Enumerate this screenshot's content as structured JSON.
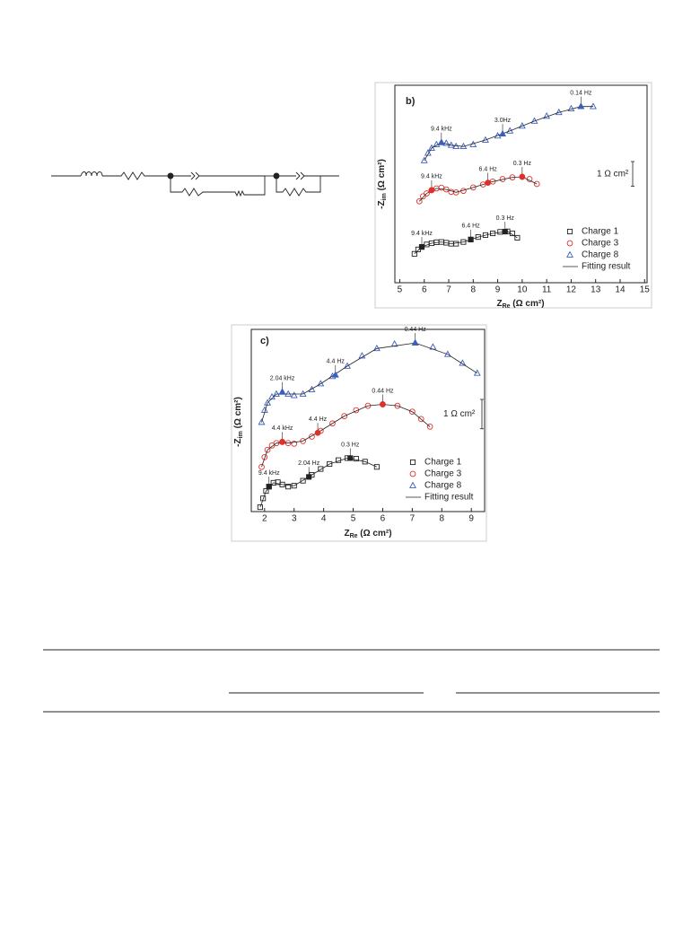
{
  "chart_data": [
    {
      "type": "scatter",
      "panel_label": "b)",
      "x_label": {
        "main": "Z",
        "sub": "Re",
        "unit": " (Ω cm²)"
      },
      "y_label": {
        "main": "-Z",
        "sub": "im",
        "unit": " (Ω cm²)"
      },
      "xlim": [
        4.8,
        15.1
      ],
      "xticks": [
        5,
        6,
        7,
        8,
        9,
        10,
        11,
        12,
        13,
        14,
        15
      ],
      "ylim": [
        0,
        8
      ],
      "scale_bar": {
        "label": "1 Ω cm²",
        "length": 1
      },
      "series": [
        {
          "name": "Charge 1",
          "color": "#222222",
          "marker": "square",
          "x": [
            5.6,
            5.75,
            5.9,
            6.1,
            6.3,
            6.5,
            6.7,
            6.9,
            7.1,
            7.3,
            7.6,
            7.9,
            8.2,
            8.5,
            8.8,
            9.1,
            9.4,
            9.6,
            9.8
          ],
          "values": [
            1.17,
            1.35,
            1.45,
            1.55,
            1.6,
            1.64,
            1.65,
            1.62,
            1.58,
            1.58,
            1.65,
            1.75,
            1.85,
            1.93,
            2.0,
            2.06,
            2.08,
            2.0,
            1.82
          ]
        },
        {
          "name": "Charge 3",
          "color": "#e0302a",
          "marker": "circle",
          "x": [
            5.8,
            5.95,
            6.1,
            6.3,
            6.5,
            6.7,
            6.9,
            7.1,
            7.3,
            7.6,
            8.0,
            8.4,
            8.8,
            9.2,
            9.6,
            10.0,
            10.3,
            10.6
          ],
          "values": [
            3.3,
            3.5,
            3.62,
            3.75,
            3.82,
            3.85,
            3.78,
            3.68,
            3.66,
            3.72,
            3.86,
            3.98,
            4.1,
            4.2,
            4.27,
            4.29,
            4.2,
            4.0
          ]
        },
        {
          "name": "Charge 8",
          "color": "#3a5fbf",
          "marker": "triangle",
          "x": [
            6.0,
            6.15,
            6.3,
            6.5,
            6.7,
            6.9,
            7.1,
            7.3,
            7.6,
            8.0,
            8.5,
            9.0,
            9.5,
            10.0,
            10.5,
            11.0,
            11.5,
            12.0,
            12.4,
            12.9
          ],
          "values": [
            4.95,
            5.25,
            5.45,
            5.6,
            5.68,
            5.65,
            5.57,
            5.52,
            5.52,
            5.6,
            5.78,
            5.95,
            6.15,
            6.35,
            6.55,
            6.75,
            6.9,
            7.05,
            7.14,
            7.14
          ]
        },
        {
          "name": "Fitting result",
          "color": "#222222",
          "marker": "line",
          "x": [
            5.6,
            5.9,
            6.3,
            6.7,
            7.1,
            7.6,
            8.2,
            8.8,
            9.4,
            9.8,
            null,
            5.8,
            6.1,
            6.5,
            6.9,
            7.3,
            8.0,
            8.8,
            9.6,
            10.0,
            10.6,
            null,
            6.0,
            6.3,
            6.7,
            7.1,
            7.6,
            8.5,
            9.5,
            10.5,
            11.5,
            12.4,
            12.9
          ],
          "values": [
            1.17,
            1.45,
            1.6,
            1.65,
            1.58,
            1.65,
            1.85,
            2.0,
            2.08,
            1.82,
            null,
            3.3,
            3.62,
            3.82,
            3.78,
            3.66,
            3.86,
            4.1,
            4.27,
            4.29,
            4.0,
            null,
            4.95,
            5.45,
            5.68,
            5.57,
            5.52,
            5.78,
            6.15,
            6.55,
            6.9,
            7.14,
            7.14
          ]
        }
      ],
      "annotations": [
        {
          "text": "9.4 kHz",
          "x": 5.9,
          "y": 1.45,
          "color": "#222222"
        },
        {
          "text": "6.4 Hz",
          "x": 7.9,
          "y": 1.75,
          "color": "#222222"
        },
        {
          "text": "0.3 Hz",
          "x": 9.3,
          "y": 2.07,
          "color": "#222222"
        },
        {
          "text": "9.4 kHz",
          "x": 6.3,
          "y": 3.75,
          "color": "#e0302a"
        },
        {
          "text": "6.4 Hz",
          "x": 8.6,
          "y": 4.05,
          "color": "#e0302a"
        },
        {
          "text": "0.3 Hz",
          "x": 10.0,
          "y": 4.29,
          "color": "#e0302a"
        },
        {
          "text": "9.4 kHz",
          "x": 6.7,
          "y": 5.68,
          "color": "#3a5fbf"
        },
        {
          "text": "3.0Hz",
          "x": 9.2,
          "y": 6.03,
          "color": "#3a5fbf"
        },
        {
          "text": "0.14 Hz",
          "x": 12.4,
          "y": 7.14,
          "color": "#3a5fbf"
        }
      ]
    },
    {
      "type": "scatter",
      "panel_label": "c)",
      "x_label": {
        "main": "Z",
        "sub": "Re",
        "unit": " (Ω cm²)"
      },
      "y_label": {
        "main": "-Z",
        "sub": "im",
        "unit": " (Ω cm²)"
      },
      "xlim": [
        1.55,
        9.45
      ],
      "xticks": [
        2,
        3,
        4,
        5,
        6,
        7,
        8,
        9
      ],
      "ylim": [
        0,
        6.2
      ],
      "scale_bar": {
        "label": "1 Ω cm²",
        "length": 1
      },
      "series": [
        {
          "name": "Charge 1",
          "color": "#222222",
          "marker": "square",
          "x": [
            1.85,
            1.95,
            2.05,
            2.15,
            2.3,
            2.45,
            2.6,
            2.8,
            3.0,
            3.3,
            3.6,
            3.9,
            4.2,
            4.5,
            4.8,
            5.1,
            5.4,
            5.8
          ],
          "values": [
            0.15,
            0.45,
            0.7,
            0.85,
            0.98,
            1.0,
            0.92,
            0.85,
            0.88,
            1.05,
            1.25,
            1.45,
            1.62,
            1.75,
            1.82,
            1.8,
            1.7,
            1.52
          ]
        },
        {
          "name": "Charge 3",
          "color": "#e0302a",
          "marker": "circle",
          "x": [
            1.9,
            2.0,
            2.1,
            2.25,
            2.4,
            2.6,
            2.8,
            3.0,
            3.3,
            3.6,
            3.9,
            4.3,
            4.7,
            5.1,
            5.5,
            6.0,
            6.5,
            7.0,
            7.3,
            7.6
          ],
          "values": [
            1.52,
            1.85,
            2.1,
            2.25,
            2.33,
            2.37,
            2.33,
            2.31,
            2.4,
            2.55,
            2.75,
            3.0,
            3.25,
            3.45,
            3.6,
            3.65,
            3.6,
            3.4,
            3.15,
            2.89
          ]
        },
        {
          "name": "Charge 8",
          "color": "#3a5fbf",
          "marker": "triangle",
          "x": [
            1.9,
            2.0,
            2.1,
            2.25,
            2.4,
            2.6,
            2.8,
            3.0,
            3.3,
            3.6,
            3.9,
            4.3,
            4.8,
            5.3,
            5.8,
            6.4,
            7.1,
            7.7,
            8.2,
            8.7,
            9.2
          ],
          "values": [
            3.04,
            3.45,
            3.7,
            3.9,
            4.0,
            4.07,
            4.0,
            3.95,
            4.0,
            4.15,
            4.35,
            4.6,
            4.95,
            5.3,
            5.55,
            5.7,
            5.74,
            5.6,
            5.35,
            5.05,
            4.71
          ]
        },
        {
          "name": "Fitting result",
          "color": "#222222",
          "marker": "line",
          "x": [
            1.85,
            2.05,
            2.3,
            2.6,
            3.0,
            3.6,
            4.2,
            4.8,
            5.4,
            5.8,
            null,
            1.9,
            2.1,
            2.4,
            2.8,
            3.3,
            3.9,
            4.7,
            5.5,
            6.0,
            6.5,
            7.0,
            7.6,
            null,
            1.9,
            2.1,
            2.4,
            2.8,
            3.3,
            3.9,
            4.8,
            5.8,
            7.1,
            8.2,
            9.2
          ],
          "values": [
            0.15,
            0.7,
            0.98,
            0.92,
            0.88,
            1.25,
            1.62,
            1.82,
            1.7,
            1.52,
            null,
            1.52,
            2.1,
            2.33,
            2.33,
            2.4,
            2.75,
            3.25,
            3.6,
            3.65,
            3.6,
            3.4,
            2.89,
            null,
            3.04,
            3.7,
            4.0,
            4.0,
            4.0,
            4.35,
            4.95,
            5.55,
            5.74,
            5.35,
            4.71
          ]
        }
      ],
      "annotations": [
        {
          "text": "9.4 kHz",
          "x": 2.15,
          "y": 0.85,
          "color": "#222222"
        },
        {
          "text": "2.04 Hz",
          "x": 3.5,
          "y": 1.18,
          "color": "#222222"
        },
        {
          "text": "0.3 Hz",
          "x": 4.9,
          "y": 1.82,
          "color": "#222222"
        },
        {
          "text": "4.4 kHz",
          "x": 2.6,
          "y": 2.37,
          "color": "#e0302a"
        },
        {
          "text": "4.4 Hz",
          "x": 3.8,
          "y": 2.68,
          "color": "#e0302a"
        },
        {
          "text": "0.44 Hz",
          "x": 6.0,
          "y": 3.65,
          "color": "#e0302a"
        },
        {
          "text": "2.04 kHz",
          "x": 2.6,
          "y": 4.07,
          "color": "#3a5fbf"
        },
        {
          "text": "4.4 Hz",
          "x": 4.4,
          "y": 4.65,
          "color": "#3a5fbf"
        },
        {
          "text": "0.44 Hz",
          "x": 7.1,
          "y": 5.74,
          "color": "#3a5fbf"
        }
      ]
    }
  ]
}
